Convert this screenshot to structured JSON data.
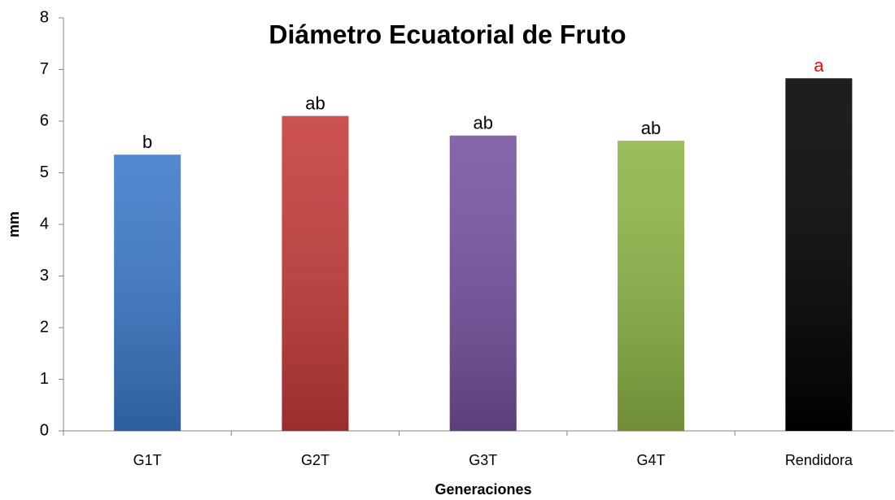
{
  "chart_data": {
    "type": "bar",
    "title": "Diámetro Ecuatorial de Fruto",
    "x_label": "Generaciones",
    "y_label": "mm",
    "categories": [
      "G1T",
      "G2T",
      "G3T",
      "G4T",
      "Rendidora"
    ],
    "values": [
      5.35,
      6.1,
      5.72,
      5.62,
      6.83
    ],
    "colors": [
      "#3a78c8",
      "#c43a38",
      "#7451a0",
      "#8db545",
      "#000000"
    ],
    "annotations": [
      "b",
      "ab",
      "ab",
      "ab",
      "a"
    ],
    "annotation_colors": [
      "#000000",
      "#000000",
      "#000000",
      "#000000",
      "#ff0000"
    ],
    "ylim": [
      0,
      8
    ],
    "yticks": [
      0,
      1,
      2,
      3,
      4,
      5,
      6,
      7,
      8
    ],
    "grid": false
  }
}
